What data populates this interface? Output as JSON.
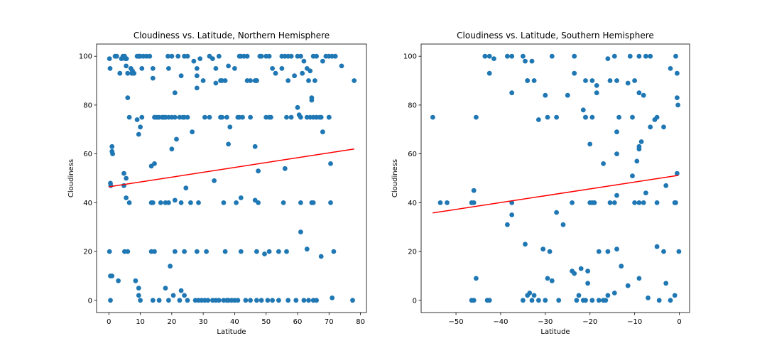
{
  "chart_data": [
    {
      "type": "scatter",
      "title": "Cloudiness vs. Latitude, Northern Hemisphere",
      "xlabel": "Latitude",
      "ylabel": "Cloudiness",
      "xlim": [
        -3.9,
        81.9
      ],
      "ylim": [
        -5,
        105
      ],
      "xticks": [
        0,
        10,
        20,
        30,
        40,
        50,
        60,
        70,
        80
      ],
      "yticks": [
        0,
        20,
        40,
        60,
        80,
        100
      ],
      "grid": false,
      "point_color": "#1f77b4",
      "line_color": "#ff0000",
      "regression_line": {
        "x": [
          0,
          78
        ],
        "y": [
          46.5,
          62
        ]
      },
      "series": [
        {
          "x": [
            0.2,
            0.4,
            0.6,
            1.0,
            1.2,
            0.5,
            2.0,
            3.5,
            4.0,
            4.5,
            5.0,
            5.5,
            5.2,
            6.0,
            7.0,
            7.5,
            8.0,
            9.0,
            9.5,
            10.0,
            11.0,
            12.0,
            13.0,
            14.0,
            15.0,
            16.0,
            17.0,
            18.0,
            19.0,
            20.0,
            22.0,
            24.0,
            25.0,
            27.0,
            28.0,
            29.0,
            30.0,
            32.0,
            33.0,
            34.0,
            35.0,
            37.0,
            38.0,
            40.0,
            42.0,
            43.0,
            44.0,
            45.0,
            47.0,
            48.0,
            50.0,
            51.0,
            52.0,
            53.0,
            55.0,
            56.0,
            57.0,
            58.0,
            60.0,
            61.0,
            62.0,
            63.0,
            64.0,
            65.0,
            66.0,
            68.0,
            69.0,
            70.0,
            71.0,
            72.0,
            74.0,
            78.0,
            2.5,
            4.8,
            5.6,
            7.3,
            9.8,
            10.5,
            14.0,
            17.5,
            18.8,
            21.0,
            23.0,
            28.0,
            30.5,
            34.0,
            35.5,
            37.5,
            38.5,
            41.5,
            44.0,
            46.5,
            48.5,
            51.5,
            55.0,
            57.0,
            59.0,
            61.5,
            64.5,
            65.5,
            67.5,
            70.0,
            4.8,
            5.5,
            6.5,
            9.0,
            10.5,
            13.5,
            14.5,
            15.5,
            17.0,
            18.0,
            19.0,
            20.0,
            21.0,
            22.5,
            23.5,
            24.0,
            25.0,
            32.0,
            35.5,
            36.0,
            41.5,
            42.5,
            45.0,
            47.0,
            50.0,
            51.0,
            56.5,
            58.0,
            60.0,
            63.0,
            64.0,
            65.0,
            66.0,
            67.0,
            68.0,
            70.0,
            6.0,
            9.5,
            10.0,
            14.5,
            20.0,
            21.5,
            26.5,
            28.0,
            36.0,
            38.0,
            41.0,
            46.5,
            47.5,
            56.0,
            60.5,
            61.0,
            63.5,
            64.5,
            66.0,
            70.5,
            0.5,
            1.0,
            5.5,
            6.5,
            13.5,
            14.0,
            16.5,
            18.0,
            19.0,
            21.0,
            23.0,
            24.5,
            26.0,
            28.5,
            33.5,
            36.5,
            40.5,
            42.0,
            46.5,
            47.5,
            55.5,
            61.0,
            64.5,
            65.0,
            70.5,
            0.2,
            1.0,
            5.0,
            6.0,
            8.5,
            9.5,
            13.5,
            14.5,
            18.0,
            19.5,
            21.0,
            23.0,
            24.0,
            28.0,
            31.0,
            37.0,
            42.0,
            47.0,
            49.5,
            51.0,
            54.0,
            56.5,
            61.0,
            63.0,
            67.5,
            71.5,
            0.5,
            3.0,
            9.5,
            10.0,
            14.0,
            16.0,
            19.0,
            20.5,
            22.5,
            24.0,
            25.0,
            27.5,
            28.5,
            29.5,
            30.5,
            31.5,
            33.0,
            34.0,
            35.0,
            36.5,
            37.5,
            38.0,
            39.0,
            40.0,
            41.0,
            43.5,
            45.0,
            47.0,
            48.5,
            50.5,
            52.0,
            54.0,
            57.0,
            59.5,
            62.0,
            63.5,
            65.0,
            66.0,
            71.0,
            77.5
          ],
          "y": [
            99,
            95,
            47,
            63,
            60,
            10,
            100,
            93,
            99,
            100,
            100,
            96,
            99,
            93,
            95,
            94,
            93,
            100,
            100,
            100,
            100,
            100,
            100,
            95,
            75,
            75,
            75,
            75,
            75,
            100,
            100,
            100,
            100,
            98,
            95,
            99,
            90,
            100,
            99,
            95,
            100,
            90,
            96,
            95,
            100,
            100,
            100,
            90,
            90,
            100,
            100,
            100,
            95,
            93,
            95,
            100,
            100,
            100,
            100,
            100,
            98,
            95,
            94,
            100,
            100,
            98,
            100,
            100,
            100,
            100,
            96,
            90,
            100,
            52,
            99,
            93,
            100,
            95,
            91,
            75,
            100,
            85,
            92,
            92,
            75,
            89,
            90,
            75,
            71,
            100,
            90,
            90,
            100,
            75,
            100,
            90,
            92,
            93,
            83,
            90,
            75,
            75,
            47,
            50,
            75,
            74,
            75,
            55,
            75,
            75,
            75,
            75,
            95,
            75,
            75,
            75,
            75,
            75,
            75,
            75,
            75,
            90,
            75,
            75,
            75,
            90,
            75,
            75,
            75,
            75,
            79,
            75,
            75,
            75,
            75,
            75,
            69,
            75,
            83,
            68,
            71,
            56,
            62,
            66,
            69,
            87,
            75,
            64,
            75,
            63,
            53,
            54,
            76,
            75,
            90,
            82,
            75,
            56,
            48,
            61,
            42,
            40,
            40,
            40,
            40,
            40,
            40,
            41,
            40,
            46,
            40,
            40,
            49,
            40,
            40,
            42,
            41,
            40,
            40,
            40,
            40,
            40,
            40,
            20,
            10,
            20,
            20,
            8,
            5,
            20,
            20,
            5,
            14,
            20,
            4,
            20,
            20,
            20,
            20,
            20,
            20,
            19,
            20,
            20,
            20,
            28,
            21,
            18,
            20,
            0,
            8,
            2,
            0,
            0,
            0,
            0,
            2,
            0,
            2,
            0,
            0,
            0,
            0,
            0,
            0,
            0,
            0,
            0,
            0,
            0,
            0,
            0,
            0,
            0,
            0,
            0,
            0,
            0,
            0,
            0,
            0,
            0,
            0,
            0,
            0,
            0,
            0,
            1,
            0
          ]
        }
      ]
    },
    {
      "type": "scatter",
      "title": "Cloudiness vs. Latitude, Southern Hemisphere",
      "xlabel": "Latitude",
      "ylabel": "Cloudiness",
      "xlim": [
        -57.8,
        2.3
      ],
      "ylim": [
        -5,
        105
      ],
      "xticks": [
        -50,
        -40,
        -30,
        -20,
        -10,
        0
      ],
      "yticks": [
        0,
        20,
        40,
        60,
        80,
        100
      ],
      "grid": false,
      "point_color": "#1f77b4",
      "line_color": "#ff0000",
      "regression_line": {
        "x": [
          -55.2,
          -0.2
        ],
        "y": [
          35.8,
          51.2
        ]
      },
      "series": [
        {
          "x": [
            -43.5,
            -42.5,
            -41.5,
            -38.5,
            -37.5,
            -35.0,
            -34.5,
            -33.0,
            -28.5,
            -23.5,
            -16.0,
            -14.5,
            -11.0,
            -9.0,
            -7.5,
            -6.5,
            -0.8,
            -42.5,
            -34.0,
            -32.5,
            -23.5,
            -21.0,
            -19.5,
            -18.5,
            -15.5,
            -14.0,
            -11.5,
            -10.0,
            -9.0,
            -8.0,
            -2.0,
            -0.5,
            -37.5,
            -34.0,
            -30.0,
            -25.0,
            -21.5,
            -21.0,
            -19.5,
            -18.5,
            -17.0,
            -14.0,
            -10.5,
            -9.0,
            -8.5,
            -5.5,
            -0.5,
            -0.3,
            -55.2,
            -45.5,
            -31.5,
            -29.5,
            -27.5,
            -21.0,
            -20.0,
            -14.0,
            -13.5,
            -6.5,
            -5.0,
            -3.5,
            -46.0,
            -19.0,
            -15.5,
            -14.0,
            -10.5,
            -9.5,
            -9.0,
            -1.0,
            -0.5,
            -53.5,
            -52.0,
            -46.5,
            -46.0,
            -37.5,
            -24.0,
            -20.0,
            -19.5,
            -14.5,
            -10.0,
            -8.0,
            -5.0,
            -3.0,
            -1.0,
            -0.8,
            -38.5,
            -37.5,
            -34.5,
            -30.5,
            -29.0,
            -27.5,
            -26.0,
            -22.0,
            -20.5,
            -18.0,
            -16.0,
            -14.0,
            -13.0,
            -9.0,
            -7.5,
            -5.0,
            -3.5,
            -0.1,
            -46.5,
            -46.0,
            -45.5,
            -43.0,
            -42.5,
            -35.0,
            -34.0,
            -33.5,
            -33.0,
            -32.5,
            -31.5,
            -30.0,
            -29.5,
            -28.5,
            -27.0,
            -24.0,
            -23.5,
            -23.0,
            -22.5,
            -21.5,
            -21.0,
            -20.5,
            -19.5,
            -18.0,
            -17.0,
            -16.5,
            -16.0,
            -14.5,
            -11.5,
            -9.0,
            -7.0,
            -4.5,
            -3.0,
            -2.0,
            -1.0
          ],
          "y": [
            100,
            100,
            99,
            100,
            100,
            100,
            98,
            98,
            100,
            100,
            99,
            100,
            100,
            100,
            100,
            100,
            100,
            93,
            90,
            90,
            93,
            90,
            90,
            88,
            90,
            90,
            89,
            90,
            85,
            84,
            95,
            93,
            85,
            90,
            84,
            84,
            78,
            75,
            75,
            85,
            56,
            60,
            75,
            63,
            65,
            74,
            83,
            80,
            75,
            75,
            74,
            75,
            75,
            75,
            64,
            69,
            75,
            71,
            75,
            71,
            45,
            40,
            40,
            43,
            51,
            57,
            62,
            40,
            52,
            40,
            40,
            40,
            40,
            40,
            40,
            40,
            40,
            40,
            40,
            40,
            40,
            47,
            40,
            40,
            31,
            35,
            23,
            21,
            20,
            36,
            31,
            13,
            12,
            20,
            20,
            21,
            14,
            40,
            44,
            22,
            20,
            20,
            0,
            0,
            9,
            0,
            0,
            0,
            2,
            3,
            0,
            2,
            0,
            0,
            9,
            8,
            0,
            12,
            11,
            0,
            2,
            0,
            0,
            7,
            0,
            0,
            0,
            0,
            2,
            3,
            6,
            9,
            1,
            0,
            7,
            0,
            2
          ]
        }
      ]
    }
  ]
}
